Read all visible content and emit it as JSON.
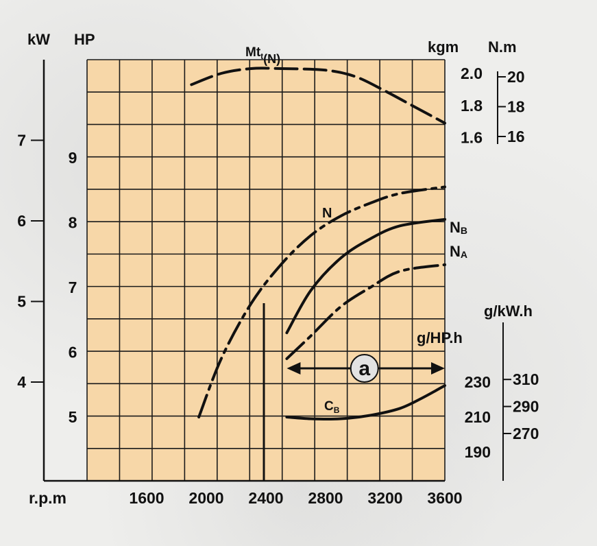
{
  "chart_data": {
    "type": "line",
    "x_axis": {
      "label": "r.p.m",
      "range": [
        1200,
        3600
      ],
      "ticks": [
        1600,
        2000,
        2400,
        2800,
        3200,
        3600
      ],
      "tick_labels": [
        "1600",
        "2000",
        "2400",
        "2800",
        "3200",
        "3600"
      ]
    },
    "power_axes": {
      "kw": {
        "label": "kW",
        "ticks": [
          "4",
          "5",
          "6",
          "7"
        ]
      },
      "hp": {
        "label": "HP",
        "ticks": [
          "5",
          "6",
          "7",
          "8",
          "9"
        ]
      }
    },
    "torque_axes": {
      "kgm": {
        "label": "kgm",
        "ticks": [
          "1.6",
          "1.8",
          "2.0"
        ]
      },
      "nm": {
        "label": "N.m",
        "ticks": [
          "16",
          "18",
          "20"
        ]
      }
    },
    "consumption_axes": {
      "g_kwh": {
        "label": "g/kW.h",
        "ticks": [
          "270",
          "290",
          "310"
        ]
      },
      "g_hph": {
        "label": "g/HP.h",
        "ticks": [
          "190",
          "210",
          "230"
        ]
      }
    },
    "series": [
      {
        "name": "Mt",
        "name_sub": "t",
        "name_suffix": "(N)",
        "style": "dashed",
        "points": [
          [
            1900,
            1.93
          ],
          [
            2100,
            2.0
          ],
          [
            2300,
            2.03
          ],
          [
            2500,
            2.03
          ],
          [
            2800,
            2.02
          ],
          [
            3000,
            1.98
          ],
          [
            3200,
            1.89
          ],
          [
            3400,
            1.79
          ],
          [
            3600,
            1.69
          ]
        ]
      },
      {
        "name": "N",
        "style": "dash-dot",
        "points": [
          [
            1950,
            5.0
          ],
          [
            2100,
            5.9
          ],
          [
            2300,
            6.75
          ],
          [
            2500,
            7.35
          ],
          [
            2700,
            7.8
          ],
          [
            2900,
            8.1
          ],
          [
            3100,
            8.3
          ],
          [
            3300,
            8.45
          ],
          [
            3600,
            8.55
          ]
        ]
      },
      {
        "name": "N",
        "name_sub": "B",
        "style": "solid",
        "points": [
          [
            2540,
            6.3
          ],
          [
            2700,
            6.95
          ],
          [
            2900,
            7.45
          ],
          [
            3100,
            7.75
          ],
          [
            3300,
            7.95
          ],
          [
            3600,
            8.05
          ]
        ]
      },
      {
        "name": "N",
        "name_sub": "A",
        "style": "dash-dot",
        "points": [
          [
            2540,
            5.9
          ],
          [
            2700,
            6.25
          ],
          [
            2900,
            6.7
          ],
          [
            3100,
            7.0
          ],
          [
            3300,
            7.25
          ],
          [
            3600,
            7.35
          ]
        ]
      },
      {
        "name": "C",
        "name_sub": "B",
        "style": "solid",
        "points": [
          [
            2540,
            210
          ],
          [
            2700,
            209
          ],
          [
            2900,
            209
          ],
          [
            3100,
            211
          ],
          [
            3300,
            215
          ],
          [
            3450,
            221
          ],
          [
            3600,
            228
          ]
        ]
      }
    ],
    "annotation": {
      "label": "a",
      "from": 2540,
      "to": 3600
    },
    "grid": true
  }
}
